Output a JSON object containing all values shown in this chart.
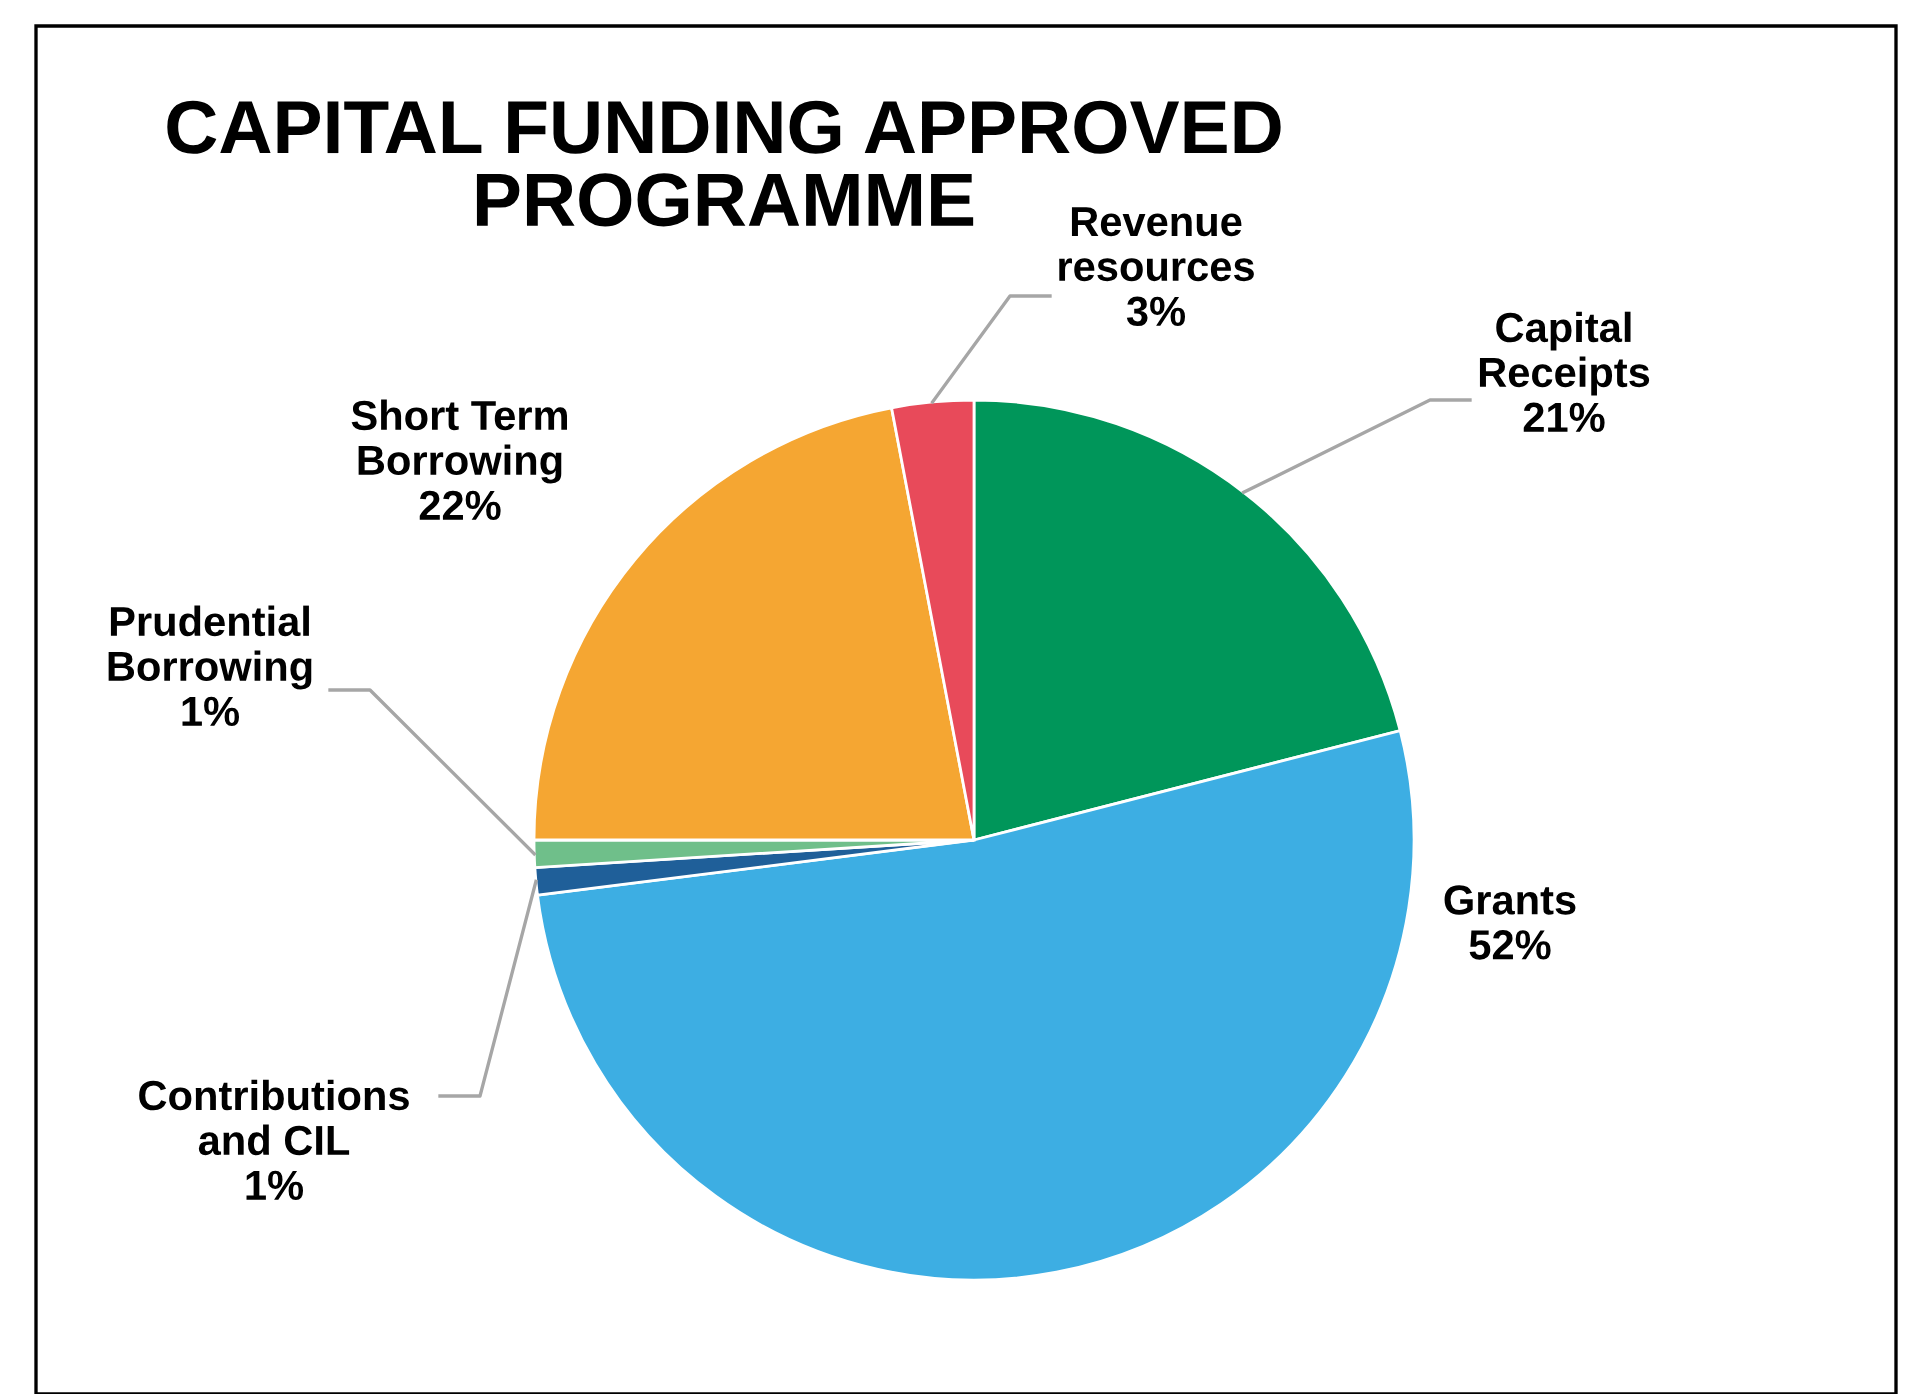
{
  "chart_data": {
    "type": "pie",
    "title": "CAPITAL FUNDING APPROVED\nPROGRAMME",
    "categories": [
      "Capital Receipts",
      "Grants",
      "Contributions and CIL",
      "Prudential Borrowing",
      "Short Term Borrowing",
      "Revenue resources"
    ],
    "values": [
      21,
      52,
      1,
      1,
      22,
      3
    ],
    "colors": [
      "#00965a",
      "#3daee3",
      "#1f5f99",
      "#6fbf8a",
      "#f5a632",
      "#e84a5a"
    ],
    "value_labels": [
      "21%",
      "52%",
      "1%",
      "1%",
      "22%",
      "3%"
    ],
    "legend": false
  }
}
